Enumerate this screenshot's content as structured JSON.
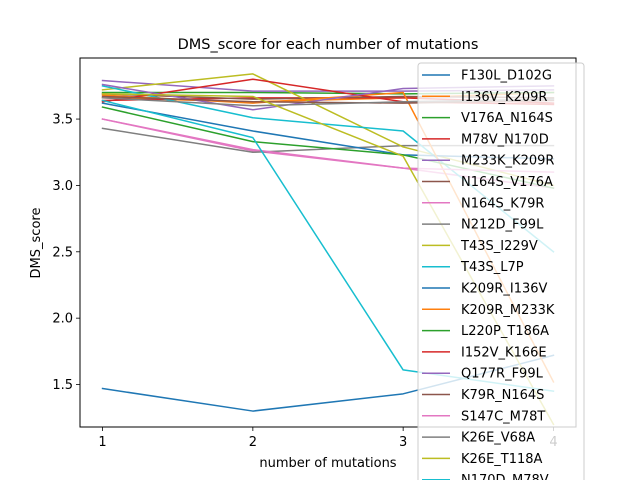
{
  "chart_data": {
    "type": "line",
    "title": "DMS_score for each number of mutations",
    "xlabel": "number of mutations",
    "ylabel": "DMS_score",
    "x": [
      1,
      2,
      3,
      4
    ],
    "xticks": [
      "1",
      "2",
      "3",
      "4"
    ],
    "xlim": [
      0.85,
      4.15
    ],
    "ylim": [
      1.18,
      3.96
    ],
    "yticks": [
      "1.5",
      "2.0",
      "2.5",
      "3.0",
      "3.5"
    ],
    "ytick_values": [
      1.5,
      2.0,
      2.5,
      3.0,
      3.5
    ],
    "grid": false,
    "legend_position": "right",
    "series": [
      {
        "name": "F130L_D102G",
        "color": "#1f77b4",
        "values": [
          1.47,
          1.3,
          1.43,
          1.72
        ]
      },
      {
        "name": "I136V_K209R",
        "color": "#ff7f0e",
        "values": [
          3.66,
          3.63,
          3.66,
          3.7
        ]
      },
      {
        "name": "V176A_N164S",
        "color": "#2ca02c",
        "values": [
          3.7,
          3.7,
          3.69,
          3.7
        ]
      },
      {
        "name": "M78V_N170D",
        "color": "#d62728",
        "values": [
          3.64,
          3.66,
          3.66,
          3.62
        ]
      },
      {
        "name": "M233K_K209R",
        "color": "#9467bd",
        "values": [
          3.79,
          3.71,
          3.71,
          3.72
        ]
      },
      {
        "name": "N164S_V176A",
        "color": "#8c564b",
        "values": [
          3.69,
          3.65,
          3.67,
          3.66
        ]
      },
      {
        "name": "N164S_K79R",
        "color": "#e377c2",
        "values": [
          3.5,
          3.26,
          3.13,
          2.98
        ]
      },
      {
        "name": "N212D_F99L",
        "color": "#7f7f7f",
        "values": [
          3.43,
          3.25,
          3.3,
          3.3
        ]
      },
      {
        "name": "T43S_I229V",
        "color": "#bcbd22",
        "values": [
          3.72,
          3.84,
          3.29,
          3.0
        ]
      },
      {
        "name": "T43S_L7P",
        "color": "#17becf",
        "values": [
          3.75,
          3.51,
          3.41,
          2.5
        ]
      },
      {
        "name": "K209R_I136V",
        "color": "#1f77b4",
        "values": [
          3.62,
          3.41,
          3.23,
          3.2
        ]
      },
      {
        "name": "K209R_M233K",
        "color": "#ff7f0e",
        "values": [
          3.68,
          3.62,
          3.7,
          1.52
        ]
      },
      {
        "name": "L220P_T186A",
        "color": "#2ca02c",
        "values": [
          3.59,
          3.33,
          3.23,
          2.98
        ]
      },
      {
        "name": "I152V_K166E",
        "color": "#d62728",
        "values": [
          3.63,
          3.8,
          3.63,
          3.61
        ]
      },
      {
        "name": "Q177R_F99L",
        "color": "#9467bd",
        "values": [
          3.76,
          3.57,
          3.73,
          3.75
        ]
      },
      {
        "name": "K79R_N164S",
        "color": "#8c564b",
        "values": [
          3.67,
          3.63,
          3.62,
          3.64
        ]
      },
      {
        "name": "S147C_M78T",
        "color": "#e377c2",
        "values": [
          3.5,
          3.27,
          3.13,
          3.1
        ]
      },
      {
        "name": "K26E_V68A",
        "color": "#7f7f7f",
        "values": [
          3.66,
          3.6,
          3.63,
          3.65
        ]
      },
      {
        "name": "K26E_T118A",
        "color": "#bcbd22",
        "values": [
          3.69,
          3.67,
          3.22,
          1.2
        ]
      },
      {
        "name": "N170D_M78V",
        "color": "#17becf",
        "values": [
          3.64,
          3.36,
          1.61,
          1.45
        ]
      }
    ]
  }
}
